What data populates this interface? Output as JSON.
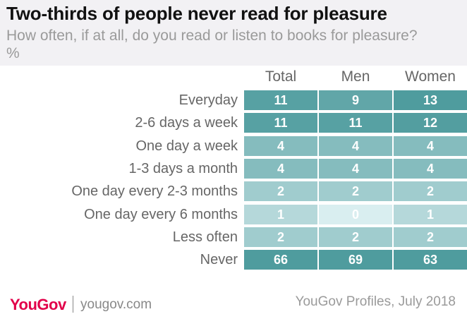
{
  "header": {
    "title": "Two-thirds of people never read for pleasure",
    "subtitle": "How often, if at all, do you read or listen to books for pleasure? %"
  },
  "footer": {
    "logo": "YouGov",
    "site": "yougov.com",
    "source": "YouGov Profiles, July 2018"
  },
  "colors": {
    "header_bg": "#f2f1f4",
    "brand": "#e2004a",
    "scale_low": "#d9eef0",
    "scale_high": "#4f9c9e"
  },
  "chart_data": {
    "type": "table",
    "title": "Two-thirds of people never read for pleasure",
    "columns": [
      "Total",
      "Men",
      "Women"
    ],
    "rows": [
      {
        "label": "Everyday",
        "values": [
          11,
          9,
          13
        ]
      },
      {
        "label": "2-6 days a week",
        "values": [
          11,
          11,
          12
        ]
      },
      {
        "label": "One day a week",
        "values": [
          4,
          4,
          4
        ]
      },
      {
        "label": "1-3 days a month",
        "values": [
          4,
          4,
          4
        ]
      },
      {
        "label": "One day every 2-3 months",
        "values": [
          2,
          2,
          2
        ]
      },
      {
        "label": "One day every 6 months",
        "values": [
          1,
          0,
          1
        ]
      },
      {
        "label": "Less often",
        "values": [
          2,
          2,
          2
        ]
      },
      {
        "label": "Never",
        "values": [
          66,
          69,
          63
        ]
      }
    ]
  }
}
